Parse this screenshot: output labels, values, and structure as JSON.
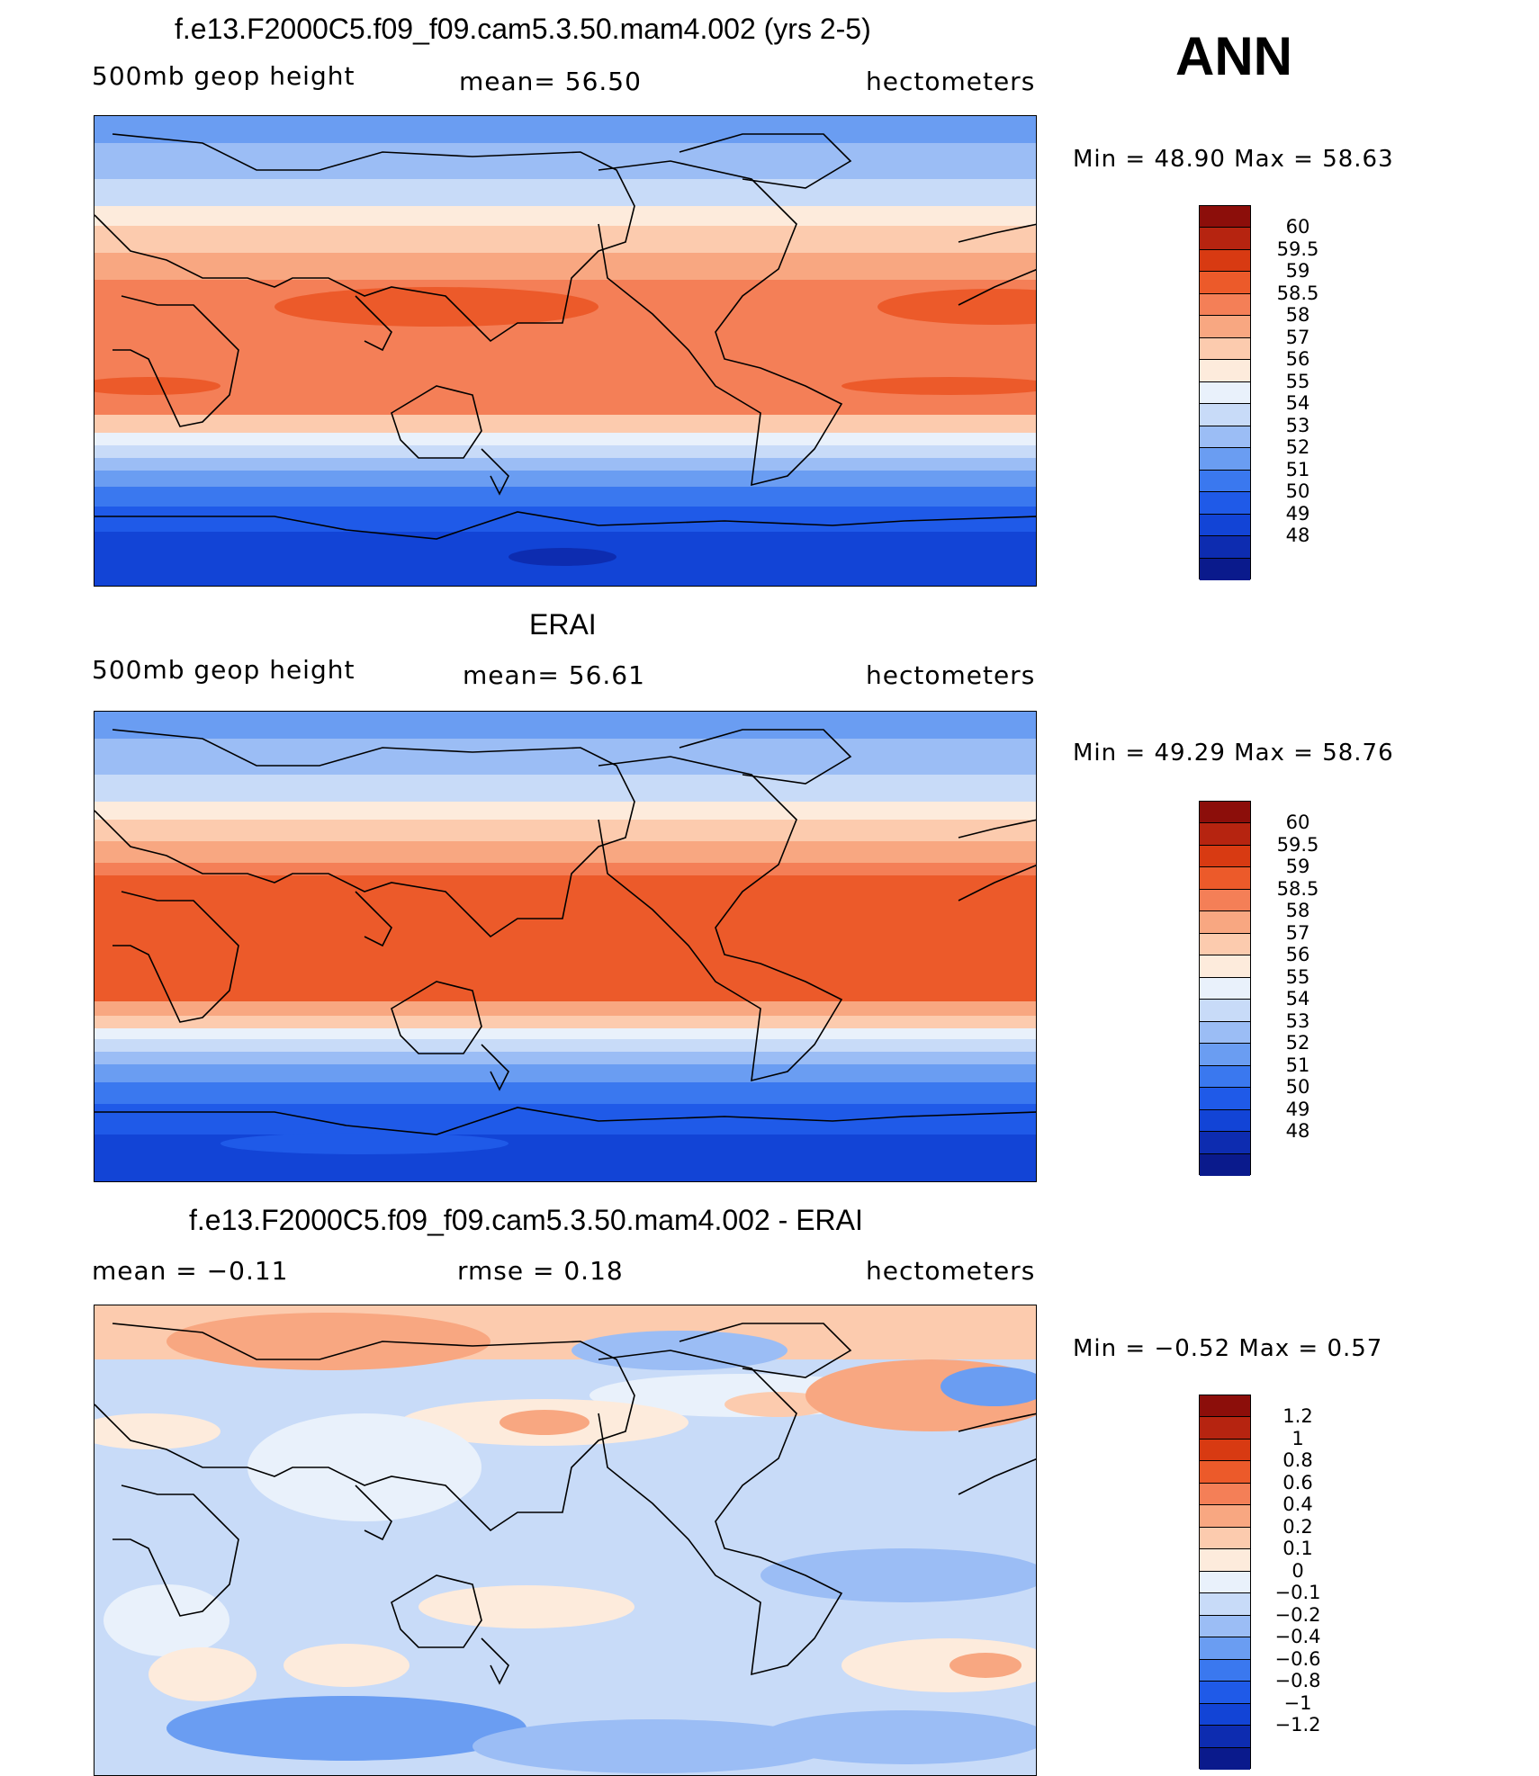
{
  "season": "ANN",
  "colors": {
    "abs_scale": [
      "#0a1a8c",
      "#0d2cb0",
      "#1244d6",
      "#1f5ae8",
      "#3a78ef",
      "#6a9df2",
      "#9bbdf5",
      "#c8dbf8",
      "#e9f1fb",
      "#fdebdc",
      "#fccbae",
      "#f8a781",
      "#f47f57",
      "#ec5a2a",
      "#d83a12",
      "#b62410",
      "#8c0e0a"
    ],
    "diff_scale": [
      "#0a1a8c",
      "#0d2cb0",
      "#1244d6",
      "#1f5ae8",
      "#3a78ef",
      "#6a9df2",
      "#9bbdf5",
      "#c8dbf8",
      "#e9f1fb",
      "#fdebdc",
      "#fccbae",
      "#f8a781",
      "#f47f57",
      "#ec5a2a",
      "#d83a12",
      "#b62410",
      "#8c0e0a"
    ]
  },
  "panels": [
    {
      "id": "model",
      "title": "f.e13.F2000C5.f09_f09.cam5.3.50.mam4.002 (yrs 2-5)",
      "left_label": "500mb  geop  height",
      "center_label": "mean=   56.50",
      "right_label": "hectometers",
      "minmax": "Min  =    48.90  Max  =    58.63",
      "colorbar_labels": [
        "60",
        "59.5",
        "59",
        "58.5",
        "58",
        "57",
        "56",
        "55",
        "54",
        "53",
        "52",
        "51",
        "50",
        "49",
        "48"
      ]
    },
    {
      "id": "obs",
      "title": "ERAI",
      "left_label": "500mb  geop  height",
      "center_label": "mean=   56.61",
      "right_label": "hectometers",
      "minmax": "Min  =    49.29  Max  =    58.76",
      "colorbar_labels": [
        "60",
        "59.5",
        "59",
        "58.5",
        "58",
        "57",
        "56",
        "55",
        "54",
        "53",
        "52",
        "51",
        "50",
        "49",
        "48"
      ]
    },
    {
      "id": "diff",
      "title": "f.e13.F2000C5.f09_f09.cam5.3.50.mam4.002 - ERAI",
      "left_label": "mean  =    −0.11",
      "center_label": "rmse  =     0.18",
      "right_label": "hectometers",
      "minmax": "Min  =    −0.52  Max  =      0.57",
      "colorbar_labels": [
        "1.2",
        "1",
        "0.8",
        "0.6",
        "0.4",
        "0.2",
        "0.1",
        "0",
        "−0.1",
        "−0.2",
        "−0.4",
        "−0.6",
        "−0.8",
        "−1",
        "−1.2"
      ]
    }
  ]
}
